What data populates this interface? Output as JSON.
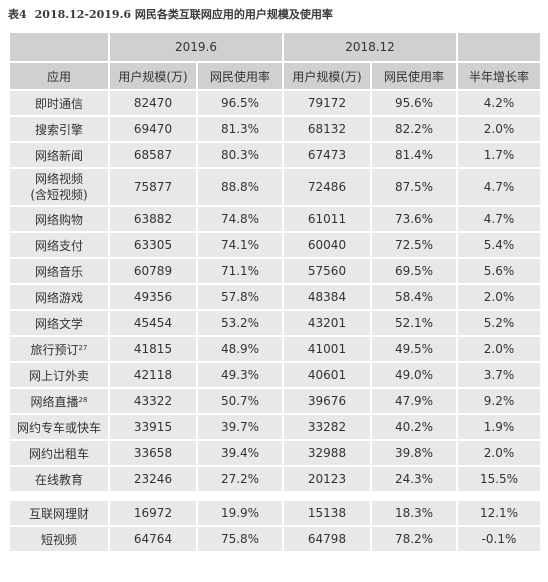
{
  "caption": {
    "number": "表4",
    "title": "2018.12-2019.6 网民各类互联网应用的用户规模及使用率"
  },
  "header": {
    "period_2019": "2019.6",
    "period_2018": "2018.12",
    "col_app": "应用",
    "col_users_2019": "用户规模(万)",
    "col_rate_2019": "网民使用率",
    "col_users_2018": "用户规模(万)",
    "col_rate_2018": "网民使用率",
    "col_growth": "半年增长率"
  },
  "rows": [
    {
      "name": "即时通信",
      "users_2019": "82470",
      "rate_2019": "96.5%",
      "users_2018": "79172",
      "rate_2018": "95.6%",
      "growth": "4.2%"
    },
    {
      "name": "搜索引擎",
      "users_2019": "69470",
      "rate_2019": "81.3%",
      "users_2018": "68132",
      "rate_2018": "82.2%",
      "growth": "2.0%"
    },
    {
      "name": "网络新闻",
      "users_2019": "68587",
      "rate_2019": "80.3%",
      "users_2018": "67473",
      "rate_2018": "81.4%",
      "growth": "1.7%"
    },
    {
      "name": "网络视频",
      "name_line2": "(含短视频)",
      "users_2019": "75877",
      "rate_2019": "88.8%",
      "users_2018": "72486",
      "rate_2018": "87.5%",
      "growth": "4.7%"
    },
    {
      "name": "网络购物",
      "users_2019": "63882",
      "rate_2019": "74.8%",
      "users_2018": "61011",
      "rate_2018": "73.6%",
      "growth": "4.7%"
    },
    {
      "name": "网络支付",
      "users_2019": "63305",
      "rate_2019": "74.1%",
      "users_2018": "60040",
      "rate_2018": "72.5%",
      "growth": "5.4%"
    },
    {
      "name": "网络音乐",
      "users_2019": "60789",
      "rate_2019": "71.1%",
      "users_2018": "57560",
      "rate_2018": "69.5%",
      "growth": "5.6%"
    },
    {
      "name": "网络游戏",
      "users_2019": "49356",
      "rate_2019": "57.8%",
      "users_2018": "48384",
      "rate_2018": "58.4%",
      "growth": "2.0%"
    },
    {
      "name": "网络文学",
      "users_2019": "45454",
      "rate_2019": "53.2%",
      "users_2018": "43201",
      "rate_2018": "52.1%",
      "growth": "5.2%"
    },
    {
      "name": "旅行预订",
      "footnote": "27",
      "users_2019": "41815",
      "rate_2019": "48.9%",
      "users_2018": "41001",
      "rate_2018": "49.5%",
      "growth": "2.0%"
    },
    {
      "name": "网上订外卖",
      "users_2019": "42118",
      "rate_2019": "49.3%",
      "users_2018": "40601",
      "rate_2018": "49.0%",
      "growth": "3.7%"
    },
    {
      "name": "网络直播",
      "footnote": "28",
      "users_2019": "43322",
      "rate_2019": "50.7%",
      "users_2018": "39676",
      "rate_2018": "47.9%",
      "growth": "9.2%"
    },
    {
      "name": "网约专车或快车",
      "users_2019": "33915",
      "rate_2019": "39.7%",
      "users_2018": "33282",
      "rate_2018": "40.2%",
      "growth": "1.9%"
    },
    {
      "name": "网约出租车",
      "users_2019": "33658",
      "rate_2019": "39.4%",
      "users_2018": "32988",
      "rate_2018": "39.8%",
      "growth": "2.0%"
    },
    {
      "name": "在线教育",
      "users_2019": "23246",
      "rate_2019": "27.2%",
      "users_2018": "20123",
      "rate_2018": "24.3%",
      "growth": "15.5%"
    }
  ],
  "extra_rows": [
    {
      "name": "互联网理财",
      "users_2019": "16972",
      "rate_2019": "19.9%",
      "users_2018": "15138",
      "rate_2018": "18.3%",
      "growth": "12.1%"
    },
    {
      "name": "短视频",
      "users_2019": "64764",
      "rate_2019": "75.8%",
      "users_2018": "64798",
      "rate_2018": "78.2%",
      "growth": "-0.1%"
    }
  ]
}
